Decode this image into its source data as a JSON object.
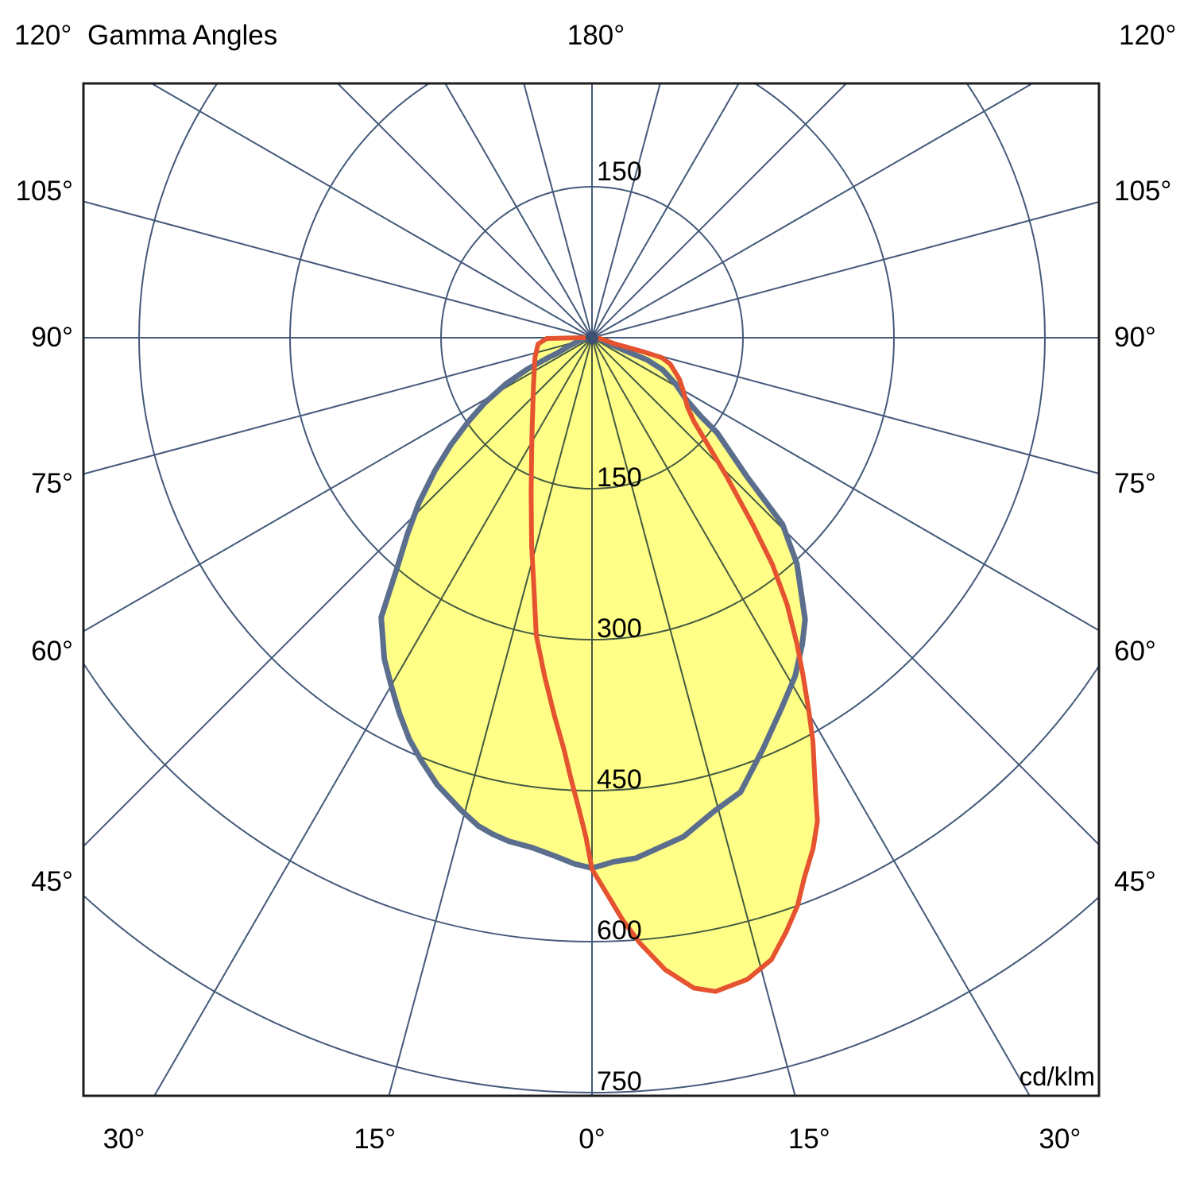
{
  "header": {
    "title": "Gamma Angles",
    "top_angle_label": "180°",
    "unit_label": "cd/klm"
  },
  "chart_data": {
    "type": "polar_photometric",
    "title": "Gamma Angles",
    "unit": "cd/klm",
    "angle_convention": "gamma angle from nadir, 0° straight down, 180° straight up",
    "ray_step_deg": 15,
    "radial_ticks": [
      150,
      300,
      450,
      600,
      750
    ],
    "ring_labels_below": [
      "150",
      "300",
      "450",
      "600",
      "750"
    ],
    "ring_label_above": "150",
    "grid_color": "#44597a",
    "border_color": "#1c1c1c",
    "fill_color": "#ffff87",
    "axis_labels": {
      "left": [
        {
          "angle": 120,
          "text": "120°"
        },
        {
          "angle": 105,
          "text": "105°"
        },
        {
          "angle": 90,
          "text": "90°"
        },
        {
          "angle": 75,
          "text": "75°"
        },
        {
          "angle": 60,
          "text": "60°"
        },
        {
          "angle": 45,
          "text": "45°"
        }
      ],
      "right": [
        {
          "angle": 120,
          "text": "120°"
        },
        {
          "angle": 105,
          "text": "105°"
        },
        {
          "angle": 90,
          "text": "90°"
        },
        {
          "angle": 75,
          "text": "75°"
        },
        {
          "angle": 60,
          "text": "60°"
        },
        {
          "angle": 45,
          "text": "45°"
        }
      ],
      "bottom": [
        {
          "angle": -30,
          "text": "30°"
        },
        {
          "angle": -15,
          "text": "15°"
        },
        {
          "angle": 0,
          "text": "0°"
        },
        {
          "angle": 15,
          "text": "15°"
        },
        {
          "angle": 30,
          "text": "30°"
        }
      ]
    },
    "series": [
      {
        "name": "intensity-curve-blue",
        "color": "#5b6e8d",
        "stroke_width": 7,
        "points_gamma_cd": [
          [
            -90,
            4
          ],
          [
            -83,
            8
          ],
          [
            -76,
            14
          ],
          [
            -70,
            24
          ],
          [
            -66,
            38
          ],
          [
            -65.6,
            47
          ],
          [
            -64,
            72
          ],
          [
            -61.8,
            97
          ],
          [
            -58.7,
            125
          ],
          [
            -55.9,
            148
          ],
          [
            -52.8,
            176
          ],
          [
            -49.7,
            205
          ],
          [
            -46.3,
            238
          ],
          [
            -43.2,
            268
          ],
          [
            -40.4,
            298
          ],
          [
            -37,
            348
          ],
          [
            -32.9,
            380
          ],
          [
            -30,
            399
          ],
          [
            -27.2,
            419
          ],
          [
            -24.5,
            438
          ],
          [
            -22,
            453
          ],
          [
            -19.1,
            470
          ],
          [
            -15.5,
            487
          ],
          [
            -13.1,
            498
          ],
          [
            -11.3,
            503
          ],
          [
            -9.4,
            507
          ],
          [
            -6.7,
            510
          ],
          [
            -4.2,
            516
          ],
          [
            -1.9,
            523
          ],
          [
            0,
            527
          ],
          [
            2.4,
            521
          ],
          [
            4.8,
            519
          ],
          [
            10.4,
            504
          ],
          [
            14.4,
            486
          ],
          [
            18.1,
            475
          ],
          [
            22.5,
            443
          ],
          [
            27,
            414
          ],
          [
            31,
            392
          ],
          [
            34.5,
            369
          ],
          [
            37.1,
            351
          ],
          [
            42.2,
            303
          ],
          [
            45.6,
            265
          ],
          [
            48.1,
            207
          ],
          [
            52.8,
            156
          ],
          [
            54.1,
            134
          ],
          [
            56.9,
            111
          ],
          [
            61.1,
            95
          ],
          [
            65.6,
            77
          ],
          [
            68.2,
            59
          ],
          [
            68.5,
            38
          ],
          [
            70,
            22
          ],
          [
            76,
            12
          ],
          [
            83,
            7
          ],
          [
            90,
            4
          ]
        ]
      },
      {
        "name": "intensity-curve-red",
        "color": "#e55330",
        "stroke_width": 6,
        "points_gamma_cd": [
          [
            -90,
            10
          ],
          [
            -89,
            45
          ],
          [
            -83.3,
            54
          ],
          [
            -70.9,
            60
          ],
          [
            -50,
            76
          ],
          [
            -30.7,
            117
          ],
          [
            -21.5,
            165
          ],
          [
            -16.2,
            215
          ],
          [
            -14.1,
            240
          ],
          [
            -10.6,
            301
          ],
          [
            -8,
            339
          ],
          [
            -5.7,
            377
          ],
          [
            -3.9,
            410
          ],
          [
            -2.8,
            437
          ],
          [
            -1.6,
            468
          ],
          [
            -0.7,
            496
          ],
          [
            0,
            528
          ],
          [
            1.5,
            552
          ],
          [
            3,
            579
          ],
          [
            4.5,
            603
          ],
          [
            6.6,
            632
          ],
          [
            8.9,
            654
          ],
          [
            10.7,
            661
          ],
          [
            13.6,
            656
          ],
          [
            16.1,
            643
          ],
          [
            18.1,
            621
          ],
          [
            19.9,
            600
          ],
          [
            21.5,
            576
          ],
          [
            23.4,
            553
          ],
          [
            25,
            530
          ],
          [
            26.1,
            505
          ],
          [
            28.7,
            457
          ],
          [
            30.2,
            428
          ],
          [
            32.1,
            394
          ],
          [
            33.8,
            366
          ],
          [
            36.2,
            328
          ],
          [
            38.5,
            288
          ],
          [
            40.7,
            245
          ],
          [
            44.3,
            190
          ],
          [
            48.5,
            146
          ],
          [
            50.6,
            131
          ],
          [
            54.1,
            117
          ],
          [
            59.8,
            105
          ],
          [
            64.7,
            96
          ],
          [
            71.4,
            82
          ],
          [
            74.1,
            72
          ],
          [
            74.7,
            51
          ],
          [
            75,
            23
          ],
          [
            80,
            12
          ],
          [
            90,
            5
          ]
        ]
      }
    ]
  }
}
